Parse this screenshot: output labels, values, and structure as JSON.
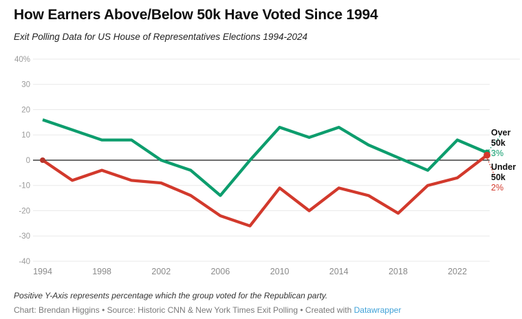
{
  "header": {
    "title": "How Earners Above/Below 50k Have Voted Since 1994",
    "subtitle": "Exit Polling Data for US House of Representatives Elections 1994-2024"
  },
  "chart_data": {
    "type": "line",
    "x": [
      1994,
      1996,
      1998,
      2000,
      2002,
      2004,
      2006,
      2008,
      2010,
      2012,
      2014,
      2016,
      2018,
      2020,
      2022,
      2024
    ],
    "series": [
      {
        "name": "Over 50k",
        "color": "#0d9d6d",
        "values": [
          16,
          12,
          8,
          8,
          0,
          -4,
          -14,
          0,
          13,
          9,
          13,
          6,
          1,
          -4,
          8,
          3
        ],
        "end_dot": true,
        "start_dot": false
      },
      {
        "name": "Under 50k",
        "color": "#d2392c",
        "values": [
          0,
          -8,
          -4,
          -8,
          -9,
          -14,
          -22,
          -26,
          -11,
          -20,
          -11,
          -14,
          -21,
          -10,
          -7,
          2
        ],
        "end_dot": true,
        "start_dot": true,
        "start_dot_color": "#b5342a"
      }
    ],
    "ylim": [
      -40,
      40
    ],
    "y_ticks": [
      40,
      30,
      20,
      10,
      0,
      -10,
      -20,
      -30,
      -40
    ],
    "y_tick_labels": [
      "40%",
      "30",
      "20",
      "10",
      "0",
      "-10",
      "-20",
      "-30",
      "-40"
    ],
    "x_ticks": [
      1994,
      1998,
      2002,
      2006,
      2010,
      2014,
      2018,
      2022
    ],
    "grid": true,
    "zero_line": true,
    "legend_position": "right-end-labels"
  },
  "annotations": {
    "over": {
      "line1": "Over",
      "line2": "50k",
      "value": "3%"
    },
    "under": {
      "line1": "Under",
      "line2": "50k",
      "value": "2%"
    }
  },
  "footer": {
    "note": "Positive Y-Axis represents percentage which the group voted for the Republican party.",
    "credit_prefix": "Chart: Brendan Higgins • Source: Historic CNN & New York Times Exit Polling • Created with ",
    "credit_link": "Datawrapper"
  },
  "colors": {
    "green": "#0d9d6d",
    "red": "#d2392c",
    "link": "#41a2d8",
    "grid": "#e9e9e9",
    "zero_line": "#161616",
    "axis_text": "#9a9a9a",
    "x_axis_text": "#8a8a8a"
  }
}
